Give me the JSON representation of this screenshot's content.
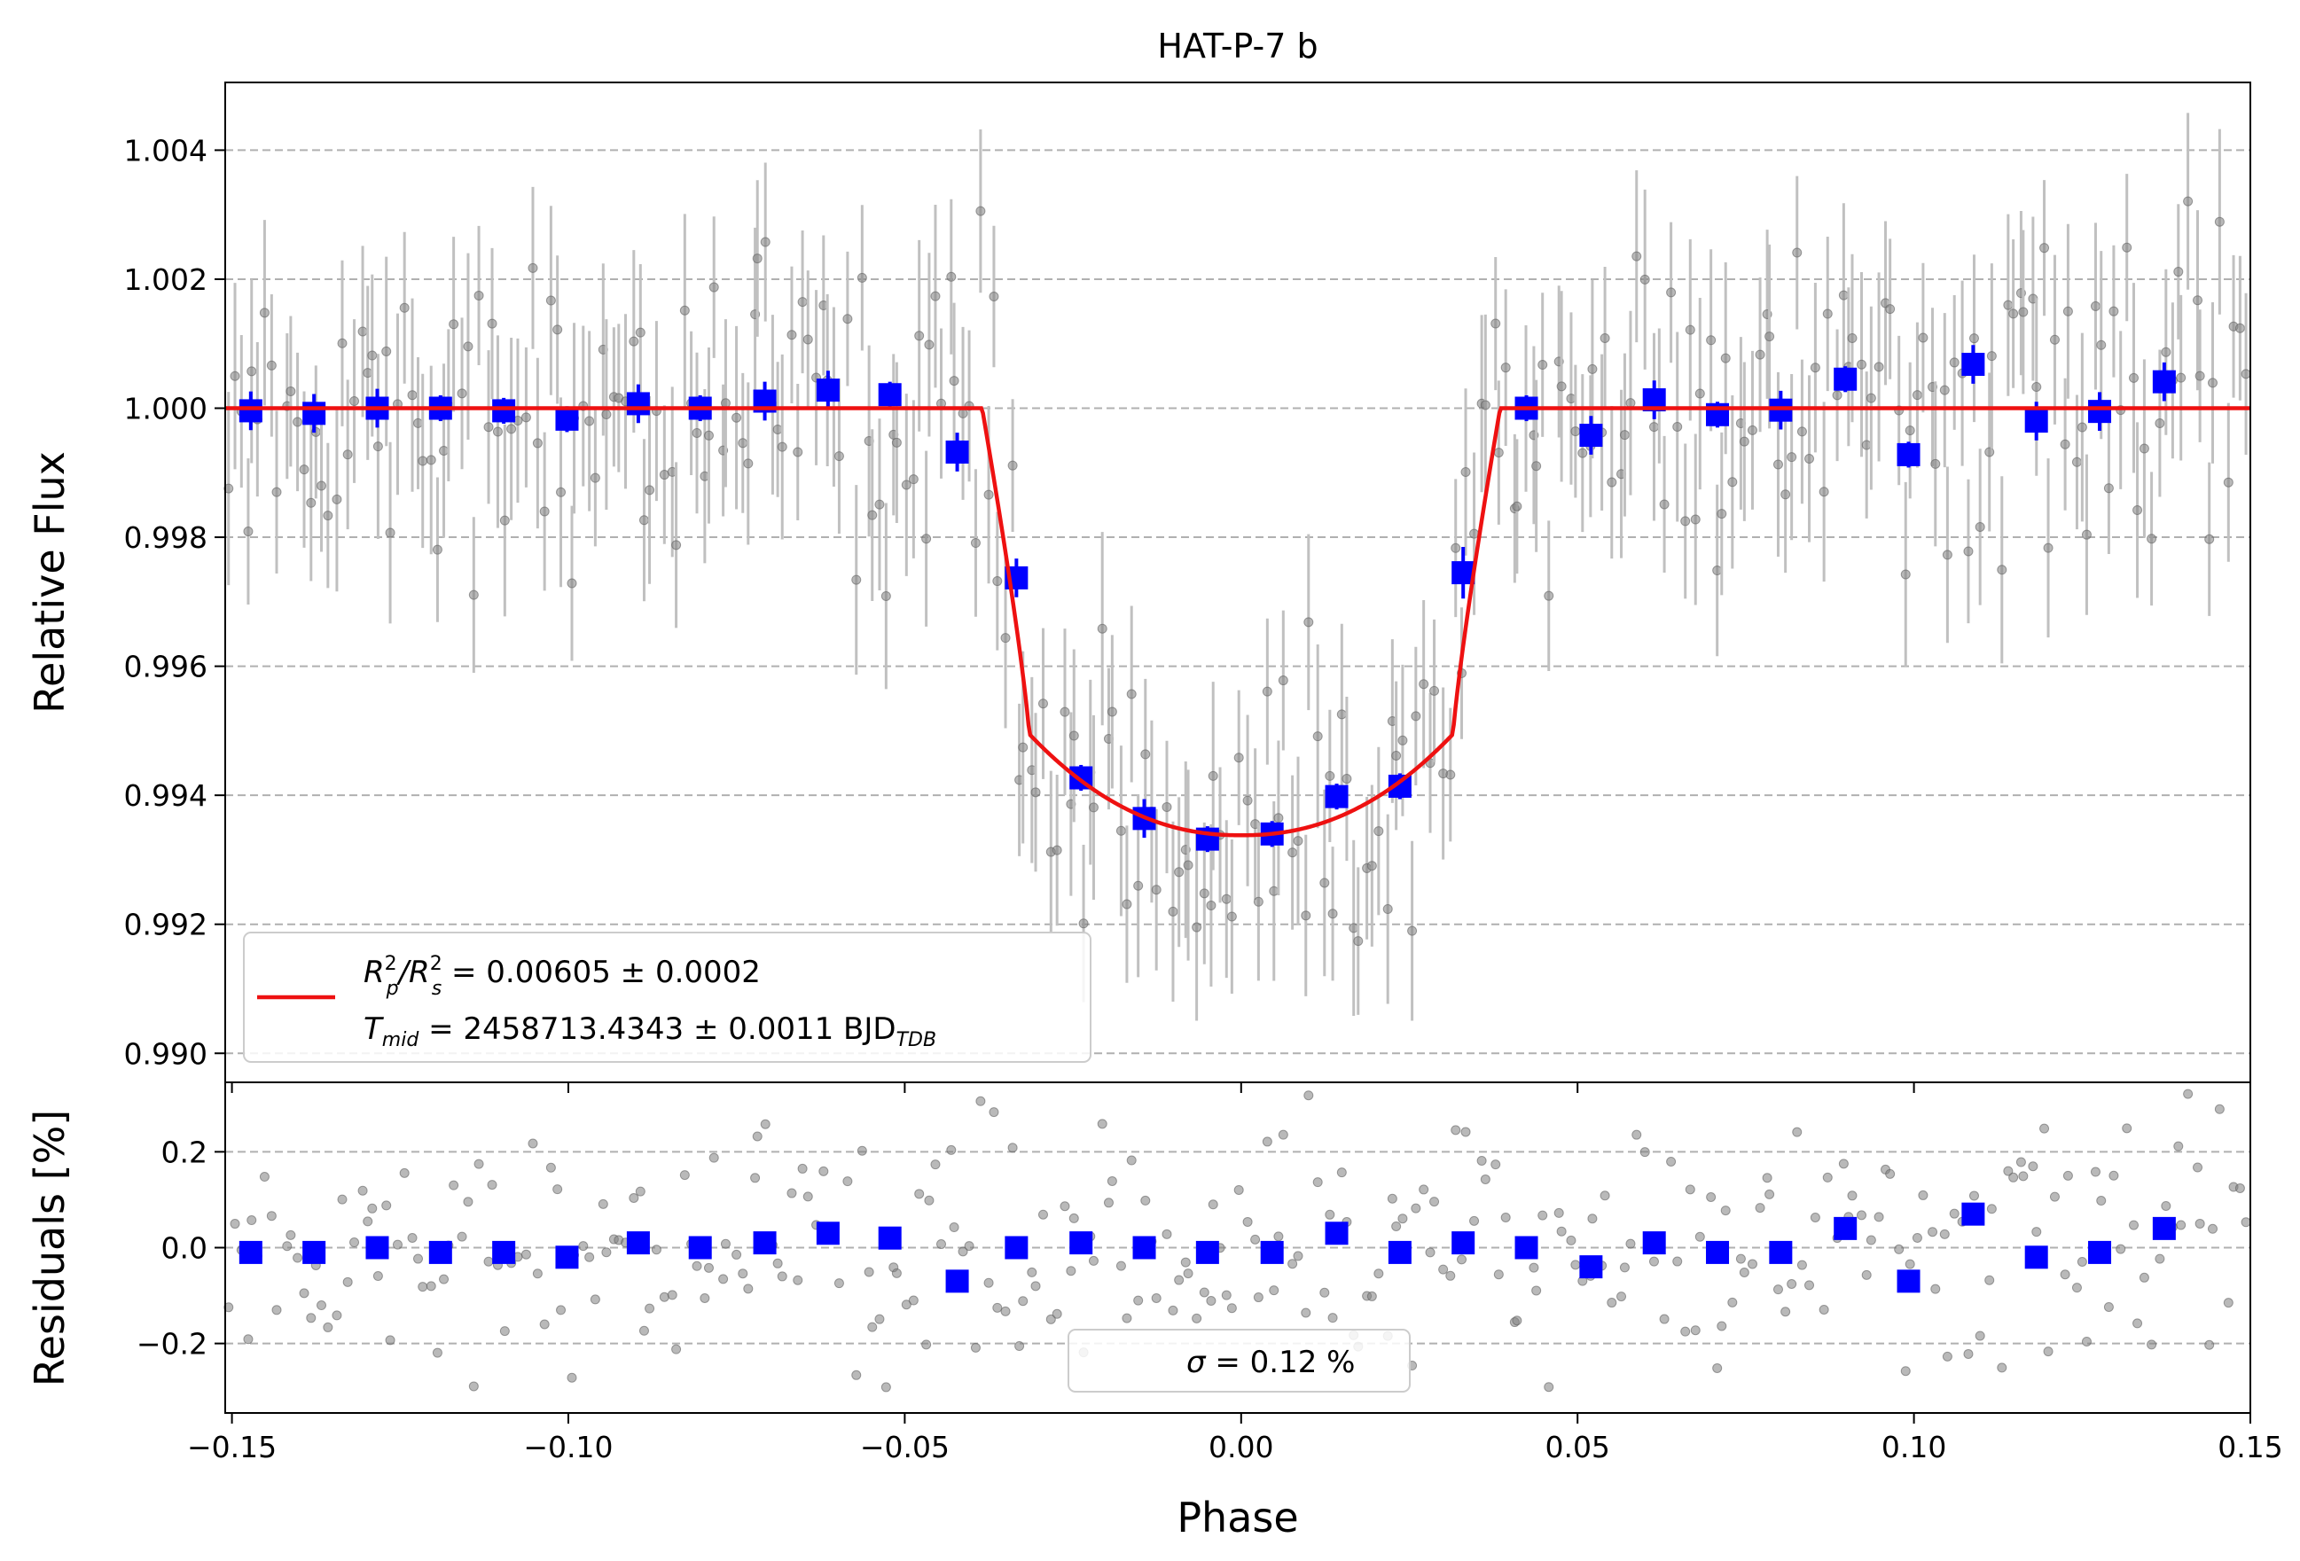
{
  "chart_data": [
    {
      "panel": "top",
      "type": "scatter",
      "title": "HAT-P-7 b",
      "xlabel": "",
      "ylabel": "Relative Flux",
      "xlim": [
        -0.151,
        0.15
      ],
      "ylim": [
        0.98955,
        1.00505
      ],
      "xticks": [
        -0.15,
        -0.1,
        -0.05,
        0.0,
        0.05,
        0.1,
        0.15
      ],
      "yticks": [
        0.99,
        0.992,
        0.994,
        0.996,
        0.998,
        1.0,
        1.002,
        1.004
      ],
      "ytick_labels": [
        "0.990",
        "0.992",
        "0.994",
        "0.996",
        "0.998",
        "1.000",
        "1.002",
        "1.004"
      ],
      "grid": "horizontal-dashed",
      "legend": {
        "placement": "lower-left",
        "line_a": "R",
        "line_b": "2",
        "line_c": "p",
        "line_d": "/R",
        "line_e": "2",
        "line_f": "s",
        "line_g": " = 0.00605 ± 0.0002",
        "line2_a": "T",
        "line2_b": "mid",
        "line2_c": " = 2458713.4343 ± 0.0011 BJD",
        "line2_d": "TDB"
      },
      "colors": {
        "binned": "#0000ff",
        "model": "#ee1111",
        "raw": "#808080",
        "errorbar": "#c0c0c0"
      },
      "model": {
        "name": "transit model",
        "depth_rp2_rs2": 0.00605,
        "t_mid_phase": 0.0,
        "contact_phases": [
          -0.0385,
          -0.0315,
          0.0315,
          0.0385
        ],
        "baseline": 1.0,
        "minimum": 0.99338
      },
      "binned_series": {
        "x": [
          -0.1472,
          -0.1378,
          -0.1284,
          -0.119,
          -0.1096,
          -0.1002,
          -0.0896,
          -0.0804,
          -0.0708,
          -0.0614,
          -0.0522,
          -0.0422,
          -0.0334,
          -0.0238,
          -0.0144,
          -0.005,
          0.0046,
          0.0142,
          0.0236,
          0.033,
          0.0424,
          0.052,
          0.0614,
          0.0708,
          0.0802,
          0.0898,
          0.0992,
          0.1088,
          0.1182,
          0.1276,
          0.1372
        ],
        "y": [
          0.99996,
          0.99992,
          1.0,
          1.0,
          0.99996,
          0.99983,
          1.00007,
          1.0,
          1.00011,
          1.00028,
          1.00021,
          0.99932,
          0.99737,
          0.99427,
          0.99364,
          0.99332,
          0.9934,
          0.99398,
          0.99414,
          0.99745,
          1.0,
          0.99958,
          1.00013,
          0.9999,
          0.99997,
          1.00045,
          0.99928,
          1.00068,
          0.9998,
          0.99995,
          1.00041
        ],
        "yerr": [
          0.0003,
          0.0003,
          0.0003,
          0.0002,
          0.0002,
          0.0002,
          0.0003,
          0.0002,
          0.0003,
          0.0003,
          0.0002,
          0.0003,
          0.0003,
          0.0002,
          0.0003,
          0.0002,
          0.0002,
          0.0002,
          0.0002,
          0.0004,
          0.0002,
          0.0003,
          0.0003,
          0.0002,
          0.0003,
          0.0002,
          0.0002,
          0.0003,
          0.0003,
          0.0003,
          0.0003
        ]
      },
      "raw_series": {
        "x_range": [
          -0.151,
          0.15
        ],
        "count": 320,
        "scatter_sigma": 0.0012,
        "yerr": 0.0012
      }
    },
    {
      "panel": "bottom",
      "type": "scatter",
      "xlabel": "Phase",
      "ylabel": "Residuals [%]",
      "xlim": [
        -0.151,
        0.15
      ],
      "ylim": [
        -0.345,
        0.345
      ],
      "xticks": [
        -0.15,
        -0.1,
        -0.05,
        0.0,
        0.05,
        0.1,
        0.15
      ],
      "xtick_labels": [
        "−0.15",
        "−0.10",
        "−0.05",
        "0.00",
        "0.05",
        "0.10",
        "0.15"
      ],
      "yticks": [
        -0.2,
        0.0,
        0.2
      ],
      "ytick_labels": [
        "−0.2",
        "0.0",
        "0.2"
      ],
      "grid": "horizontal-dashed",
      "legend": {
        "placement": "lower-center",
        "sigma_symbol": "σ",
        "sigma_text": " = 0.12 %"
      },
      "binned_series": {
        "x": [
          -0.1472,
          -0.1378,
          -0.1284,
          -0.119,
          -0.1096,
          -0.1002,
          -0.0896,
          -0.0804,
          -0.0708,
          -0.0614,
          -0.0522,
          -0.0422,
          -0.0334,
          -0.0238,
          -0.0144,
          -0.005,
          0.0046,
          0.0142,
          0.0236,
          0.033,
          0.0424,
          0.052,
          0.0614,
          0.0708,
          0.0802,
          0.0898,
          0.0992,
          0.1088,
          0.1182,
          0.1276,
          0.1372
        ],
        "y": [
          -0.01,
          -0.01,
          0.0,
          -0.01,
          -0.01,
          -0.02,
          0.01,
          0.0,
          0.01,
          0.03,
          0.02,
          -0.07,
          0.0,
          0.01,
          0.0,
          -0.01,
          -0.01,
          0.03,
          -0.01,
          0.01,
          0.0,
          -0.04,
          0.01,
          -0.01,
          -0.01,
          0.04,
          -0.07,
          0.07,
          -0.02,
          -0.01,
          0.04
        ]
      },
      "raw_series": {
        "count": 320,
        "scatter_sigma_percent": 0.12
      }
    }
  ]
}
